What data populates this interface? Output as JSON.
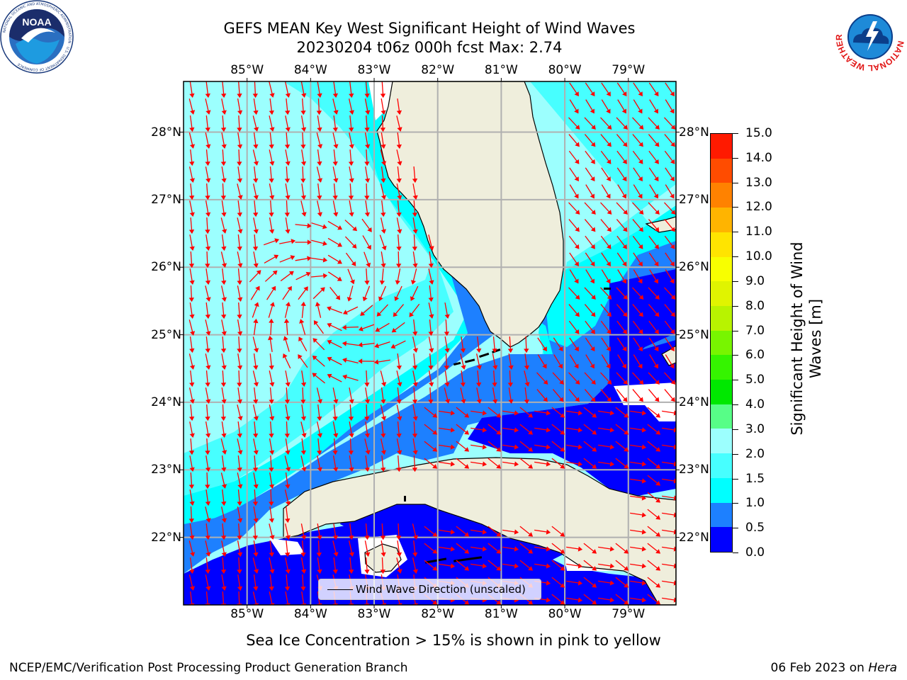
{
  "header": {
    "title_line1": "GEFS MEAN Key West Significant Height of Wind Waves",
    "title_line2": "20230204 t06z 000h fcst   Max: 2.74"
  },
  "map": {
    "lon_ticks": [
      "85°W",
      "84°W",
      "83°W",
      "82°W",
      "81°W",
      "80°W",
      "79°W"
    ],
    "lon_values": [
      -85,
      -84,
      -83,
      -82,
      -81,
      -80,
      -79
    ],
    "lat_ticks": [
      "28°N",
      "27°N",
      "26°N",
      "25°N",
      "24°N",
      "23°N",
      "22°N"
    ],
    "lat_values": [
      28,
      27,
      26,
      25,
      24,
      23,
      22
    ],
    "lon_range": [
      -86.0,
      -78.25
    ],
    "lat_range": [
      21.0,
      28.75
    ],
    "grid": true,
    "land_color": "#efeedc",
    "arrow_color": "#ff0000"
  },
  "colorbar": {
    "label": "Significant Height of Wind Waves [m]",
    "tick_labels": [
      "0.0",
      "0.5",
      "1.0",
      "1.5",
      "2.0",
      "3.0",
      "4.0",
      "5.0",
      "6.0",
      "7.0",
      "8.0",
      "9.0",
      "10.0",
      "11.0",
      "12.0",
      "13.0",
      "14.0",
      "15.0"
    ],
    "colors": [
      "#0000ff",
      "#1d80ff",
      "#00ffff",
      "#47ffff",
      "#9cfffe",
      "#57fe87",
      "#00e800",
      "#35f400",
      "#78f500",
      "#b8f300",
      "#e0f400",
      "#f8ff00",
      "#ffe400",
      "#ffb400",
      "#ff8200",
      "#ff4c00",
      "#ff1a00"
    ]
  },
  "legend": {
    "label": "Wind Wave Direction (unscaled)"
  },
  "notes": {
    "ice": "Sea Ice Concentration > 15% is shown in pink to yellow"
  },
  "footer": {
    "left": "NCEP/EMC/Verification Post Processing Product Generation Branch",
    "right_date": "06 Feb 2023 on ",
    "right_host": "Hera"
  },
  "logos": {
    "noaa_text": "NOAA",
    "noaa_ring": "NATIONAL OCEANIC AND ATMOSPHERIC ADMINISTRATION · U.S. DEPARTMENT OF COMMERCE",
    "nws_ring": "NATIONAL WEATHER SERVICE"
  }
}
